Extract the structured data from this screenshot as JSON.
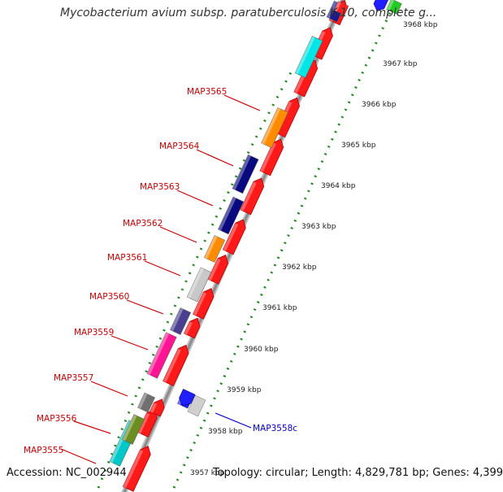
{
  "title": "Mycobacterium avium subsp. paratuberculosis K-10, complete g...",
  "footer": {
    "accession": "Accession: NC_002944",
    "topology": "Topology: circular; Length: 4,829,781 bp; Genes: 4,399"
  },
  "colors": {
    "backbone": "#8c8c8c",
    "forward_gene": "#ff1a1a",
    "label_forward": "#cc0000",
    "label_reverse": "#0000cc",
    "tick_dots": "#1a8a1a"
  },
  "scale_ticks": [
    "3957 kbp",
    "3958 kbp",
    "3959 kbp",
    "3960 kbp",
    "3961 kbp",
    "3962 kbp",
    "3963 kbp",
    "3964 kbp",
    "3965 kbp",
    "3966 kbp",
    "3967 kbp",
    "3968 kbp"
  ],
  "gene_labels": [
    {
      "name": "MAP3555",
      "strand": "forward"
    },
    {
      "name": "MAP3556",
      "strand": "forward"
    },
    {
      "name": "MAP3557",
      "strand": "forward"
    },
    {
      "name": "MAP3559",
      "strand": "forward"
    },
    {
      "name": "MAP3560",
      "strand": "forward"
    },
    {
      "name": "MAP3561",
      "strand": "forward"
    },
    {
      "name": "MAP3562",
      "strand": "forward"
    },
    {
      "name": "MAP3563",
      "strand": "forward"
    },
    {
      "name": "MAP3564",
      "strand": "forward"
    },
    {
      "name": "MAP3565",
      "strand": "forward"
    },
    {
      "name": "MAP3558c",
      "strand": "reverse"
    }
  ],
  "cog_color_blocks": [
    "#1a1a8c",
    "#ff2020",
    "#00e5e5",
    "#ff8c00",
    "#0a0a80",
    "#0a0a80",
    "#ff8c00",
    "#c8c8c8",
    "#4a3f8f",
    "#ff1493",
    "#707070",
    "#00c8c8",
    "#6b8e23",
    "#2020ff",
    "#22cc22"
  ]
}
